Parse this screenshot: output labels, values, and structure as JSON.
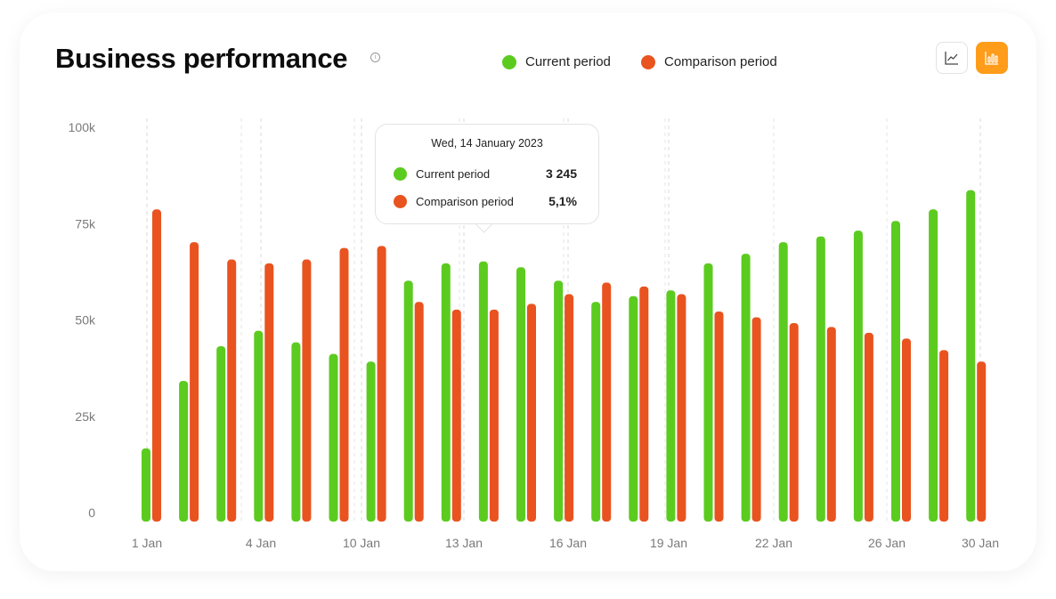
{
  "header": {
    "title": "Business performance",
    "info_icon": "info-icon"
  },
  "legend": {
    "current": "Current period",
    "comparison": "Comparison period"
  },
  "toolbar": {
    "line_chart_icon": "line-chart-icon",
    "bar_chart_icon": "bar-chart-icon",
    "active": "bar"
  },
  "colors": {
    "current": "#5ccb1f",
    "comparison": "#e9531f",
    "accent": "#ff9c1a",
    "grid": "#d9d9d9",
    "axis_text": "#7a7a7a"
  },
  "tooltip": {
    "date": "Wed, 14 January 2023",
    "current_label": "Current period",
    "current_value": "3 245",
    "comparison_label": "Comparison period",
    "comparison_value": "5,1%"
  },
  "chart_data": {
    "type": "bar",
    "ylim": [
      0,
      100000
    ],
    "y_ticks": [
      {
        "value": 100000,
        "label": "100k"
      },
      {
        "value": 75000,
        "label": "75k"
      },
      {
        "value": 50000,
        "label": "50k"
      },
      {
        "value": 25000,
        "label": "25k"
      },
      {
        "value": 0,
        "label": "0"
      }
    ],
    "x_tick_labels": [
      "1 Jan",
      "4 Jan",
      "10 Jan",
      "13 Jan",
      "16 Jan",
      "19 Jan",
      "22 Jan",
      "26 Jan",
      "30 Jan"
    ],
    "series": [
      {
        "name": "Current period",
        "values": [
          19000,
          36500,
          45500,
          49500,
          46500,
          43500,
          41500,
          62500,
          67000,
          67500,
          66000,
          62500,
          57000,
          58500,
          60000,
          67000,
          69500,
          72500,
          74000,
          75500,
          78000,
          81000,
          86000
        ]
      },
      {
        "name": "Comparison period",
        "values": [
          81000,
          72500,
          68000,
          67000,
          68000,
          71000,
          71500,
          57000,
          55000,
          55000,
          56500,
          59000,
          62000,
          61000,
          59000,
          54500,
          53000,
          51500,
          50500,
          49000,
          47500,
          44500,
          41500
        ]
      }
    ],
    "grid": "vertical-dashed",
    "legend": "top"
  }
}
